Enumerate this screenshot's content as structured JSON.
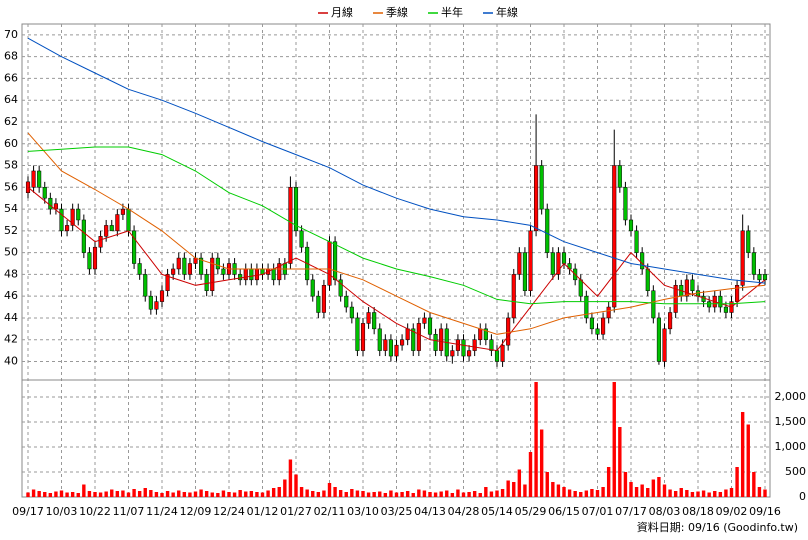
{
  "chart_data": {
    "type": "candlestick",
    "categories": [
      "09/17",
      null,
      null,
      null,
      null,
      null,
      "10/03",
      null,
      null,
      null,
      null,
      null,
      "10/22",
      null,
      null,
      null,
      null,
      null,
      "11/07",
      null,
      null,
      null,
      null,
      null,
      "11/24",
      null,
      null,
      null,
      null,
      null,
      "12/09",
      null,
      null,
      null,
      null,
      null,
      "12/24",
      null,
      null,
      null,
      null,
      null,
      "01/12",
      null,
      null,
      null,
      null,
      null,
      "01/27",
      null,
      null,
      null,
      null,
      null,
      "02/11",
      null,
      null,
      null,
      null,
      null,
      "03/10",
      null,
      null,
      null,
      null,
      null,
      "03/25",
      null,
      null,
      null,
      null,
      null,
      "04/13",
      null,
      null,
      null,
      null,
      null,
      "04/28",
      null,
      null,
      null,
      null,
      null,
      "05/14",
      null,
      null,
      null,
      null,
      null,
      "05/29",
      null,
      null,
      null,
      null,
      null,
      "06/15",
      null,
      null,
      null,
      null,
      null,
      "07/01",
      null,
      null,
      null,
      null,
      null,
      "07/17",
      null,
      null,
      null,
      null,
      null,
      "08/03",
      null,
      null,
      null,
      null,
      null,
      "08/18",
      null,
      null,
      null,
      null,
      null,
      "09/02",
      null,
      null,
      null,
      null,
      null,
      "09/16"
    ],
    "open": [
      55.5,
      56,
      57.5,
      56,
      55,
      54,
      54,
      52,
      52.5,
      54,
      53,
      50,
      48.5,
      50.5,
      51.5,
      52.5,
      52,
      53.5,
      54,
      52,
      49,
      48,
      46,
      44.8,
      45.5,
      46.5,
      48,
      48.5,
      49.5,
      48,
      49,
      49.5,
      48,
      46.5,
      49.5,
      48.5,
      48,
      49,
      48,
      47.5,
      48.5,
      47.5,
      48.5,
      48,
      48.5,
      47.5,
      49,
      49,
      56,
      52,
      50.5,
      47.5,
      46,
      44.5,
      47,
      51,
      47.5,
      46,
      45,
      44,
      41,
      43.5,
      44.5,
      43,
      41,
      42,
      40.5,
      41.5,
      42,
      43,
      41,
      43.5,
      44,
      42.5,
      41,
      43,
      40.5,
      41,
      42,
      40.5,
      41,
      42,
      43,
      42,
      41,
      40,
      41.5,
      44,
      48,
      50,
      46.5,
      52,
      58,
      54,
      50,
      48,
      50,
      49,
      48.5,
      47.5,
      46,
      44,
      43,
      42.5,
      44,
      45,
      58,
      56,
      53,
      52,
      50,
      48.5,
      46.5,
      44,
      40,
      43,
      44.5,
      47,
      46,
      47.5,
      46.5,
      46,
      45.5,
      45,
      46,
      45,
      44.5,
      45.5,
      47,
      52,
      50,
      48,
      48
    ],
    "high": [
      57,
      58,
      58,
      56.5,
      55.5,
      55,
      54.5,
      53,
      54.5,
      54.5,
      53.5,
      50.5,
      51,
      52,
      53,
      53,
      54,
      54.5,
      54.5,
      52.5,
      49.5,
      48.5,
      46.5,
      46,
      47,
      48.5,
      49,
      50,
      50,
      49.5,
      50,
      50,
      48.5,
      50,
      50,
      49,
      49.5,
      49.5,
      48.5,
      49,
      49,
      49,
      49,
      49,
      49,
      49.5,
      49.5,
      57,
      56.5,
      52.5,
      51,
      48,
      46.5,
      47.5,
      51.5,
      51.5,
      48,
      46.5,
      45.5,
      44.5,
      44,
      45,
      45,
      43.5,
      42.5,
      42.5,
      42,
      42.5,
      43.5,
      43.5,
      44,
      44.5,
      44.5,
      43,
      43.5,
      43.5,
      41.5,
      42.5,
      42.5,
      41.5,
      42.5,
      43.5,
      43.5,
      42.5,
      41.5,
      42,
      44.5,
      48.5,
      50.5,
      50.5,
      52.5,
      62.7,
      58.5,
      54.5,
      50.5,
      50.5,
      50.5,
      49.5,
      49,
      48,
      46.5,
      44.5,
      43.5,
      44.5,
      45.5,
      61.3,
      58.5,
      56.5,
      53.5,
      52.5,
      50.5,
      49,
      47,
      44.5,
      43.5,
      45,
      47.5,
      47.5,
      48,
      48,
      47,
      46.5,
      46,
      46.5,
      46.5,
      45.5,
      46,
      47.5,
      53.5,
      52.5,
      50.5,
      48.5,
      48.5
    ],
    "low": [
      55,
      55.5,
      55.5,
      54.5,
      53.5,
      53.5,
      51.5,
      51.5,
      52,
      52.5,
      49.5,
      48,
      48,
      50,
      51,
      52,
      51.5,
      53,
      51.5,
      48.5,
      47.5,
      45.5,
      44.3,
      44.3,
      45,
      46,
      47.5,
      48,
      47.5,
      47.5,
      48.5,
      47.5,
      46,
      46,
      48,
      47.5,
      47.5,
      47.5,
      47,
      47,
      47,
      47,
      47.5,
      47.5,
      47,
      47,
      47.5,
      48.5,
      51.5,
      50,
      47,
      45.5,
      44,
      44,
      46.5,
      47,
      45.5,
      44.5,
      43.5,
      40.5,
      40.5,
      43,
      42.5,
      40.5,
      40.5,
      40,
      40,
      41,
      41.5,
      40.5,
      40.5,
      43,
      42,
      40.5,
      40.5,
      40,
      39.8,
      40.5,
      40,
      40,
      40.5,
      41.5,
      41.5,
      40.5,
      39.5,
      39.5,
      41,
      43.5,
      47.5,
      46,
      46,
      51.5,
      53.5,
      49.5,
      47.5,
      47.5,
      48.5,
      48,
      47,
      45.5,
      43.5,
      42.5,
      42,
      42,
      43.5,
      44.5,
      55.5,
      52.5,
      51.5,
      49.5,
      48,
      46,
      43.5,
      39.7,
      39.5,
      42.5,
      44,
      45.5,
      45.5,
      46,
      45.5,
      45,
      44.5,
      44.5,
      44.5,
      44,
      44,
      45,
      46.5,
      49.5,
      47.5,
      47,
      47
    ],
    "close": [
      56.5,
      57.5,
      56,
      55,
      54,
      54.5,
      52,
      52.5,
      54,
      53,
      50,
      48.5,
      50.5,
      51.5,
      52.5,
      52,
      53.5,
      54,
      52,
      49,
      48,
      46,
      44.8,
      45.5,
      46.5,
      48,
      48.5,
      49.5,
      48,
      49,
      49.5,
      48,
      46.5,
      49.5,
      48.5,
      48,
      49,
      48,
      47.5,
      48.5,
      47.5,
      48.5,
      48,
      48.5,
      47.5,
      49,
      48,
      56,
      52,
      50.5,
      47.5,
      46,
      44.5,
      47,
      51,
      47.5,
      46,
      45,
      44,
      41,
      43.5,
      44.5,
      43,
      41,
      42,
      40.5,
      41.5,
      42,
      43,
      41,
      43.5,
      44,
      42.5,
      41,
      43,
      40.5,
      41,
      42,
      40.5,
      41,
      42,
      43,
      42,
      41,
      40,
      41.5,
      44,
      48,
      50,
      46.5,
      52,
      58,
      54,
      50,
      48,
      50,
      49,
      48.5,
      47.5,
      46,
      44,
      43,
      42.5,
      44,
      45,
      58,
      56,
      53,
      52,
      50,
      48.5,
      46.5,
      44,
      40,
      43,
      44.5,
      47,
      46,
      47.5,
      46.5,
      46,
      45.5,
      45,
      46,
      45,
      44.5,
      45.5,
      47,
      52,
      50,
      48,
      47.5,
      47.5
    ],
    "volume": [
      90,
      150,
      120,
      100,
      80,
      110,
      130,
      90,
      100,
      80,
      250,
      120,
      100,
      90,
      110,
      150,
      120,
      130,
      90,
      160,
      120,
      180,
      140,
      100,
      80,
      120,
      90,
      130,
      100,
      90,
      110,
      150,
      120,
      90,
      80,
      130,
      100,
      90,
      140,
      110,
      120,
      100,
      90,
      130,
      180,
      200,
      350,
      750,
      450,
      200,
      150,
      120,
      100,
      130,
      280,
      200,
      140,
      100,
      160,
      130,
      120,
      90,
      100,
      110,
      80,
      130,
      90,
      100,
      120,
      80,
      150,
      130,
      100,
      90,
      110,
      130,
      80,
      150,
      90,
      100,
      120,
      80,
      200,
      110,
      130,
      160,
      330,
      300,
      550,
      250,
      900,
      2300,
      1350,
      500,
      300,
      250,
      200,
      150,
      120,
      100,
      130,
      160,
      140,
      200,
      600,
      2300,
      1400,
      500,
      300,
      200,
      250,
      180,
      350,
      400,
      250,
      150,
      120,
      180,
      140,
      100,
      110,
      130,
      90,
      120,
      100,
      150,
      180,
      600,
      1700,
      1450,
      500,
      200,
      150
    ],
    "x": [
      0,
      6,
      12,
      18,
      24,
      30,
      36,
      42,
      48,
      54,
      60,
      66,
      72,
      78,
      84,
      90,
      96,
      102,
      108,
      114,
      120,
      126,
      132
    ],
    "series": [
      {
        "name": "月線",
        "color": "#cc0000",
        "values": [
          56,
          53.5,
          51,
          52,
          48,
          47,
          47.5,
          48,
          49.5,
          48,
          45.5,
          43.5,
          42,
          41.5,
          41,
          45,
          49,
          46,
          50,
          47,
          46,
          45,
          47.5
        ]
      },
      {
        "name": "季線",
        "color": "#e06000",
        "values": [
          61,
          57.5,
          55.8,
          54,
          52,
          49.5,
          48.5,
          48.5,
          48.5,
          48.5,
          47.5,
          46,
          44.5,
          43.5,
          42.5,
          43,
          44,
          44.5,
          45,
          45.7,
          46.3,
          46.7,
          47
        ]
      },
      {
        "name": "半年",
        "color": "#00cc00",
        "values": [
          59.3,
          59.5,
          59.7,
          59.7,
          59,
          57.5,
          55.5,
          54.3,
          52.5,
          51,
          49.5,
          48.5,
          47.8,
          47,
          45.7,
          45.3,
          45.5,
          45.5,
          45.5,
          45.3,
          45.3,
          45.3,
          45.5
        ]
      },
      {
        "name": "年線",
        "color": "#0050c0",
        "values": [
          69.7,
          68,
          66.5,
          65,
          64,
          62.8,
          61.5,
          60.2,
          59,
          57.8,
          56.2,
          55,
          54,
          53.3,
          53,
          52.5,
          51,
          50,
          49,
          48.5,
          48,
          47.5,
          47.2
        ]
      }
    ],
    "up_color": "#ff0000",
    "down_color": "#00c000",
    "volume_color": "#ff0000",
    "ylim": [
      38.3,
      71
    ],
    "yticks": [
      40,
      42,
      44,
      46,
      48,
      50,
      52,
      54,
      56,
      58,
      60,
      62,
      64,
      66,
      68,
      70
    ],
    "y2lim": [
      0,
      2340
    ],
    "y2ticks": [
      0,
      500,
      {
        "value": 1000,
        "label": "1,000"
      },
      {
        "value": 1500,
        "label": "1,500"
      },
      {
        "value": 2000,
        "label": "2,000"
      }
    ],
    "grid": true,
    "footer": "資料日期: 09/16 (Goodinfo.tw)"
  }
}
